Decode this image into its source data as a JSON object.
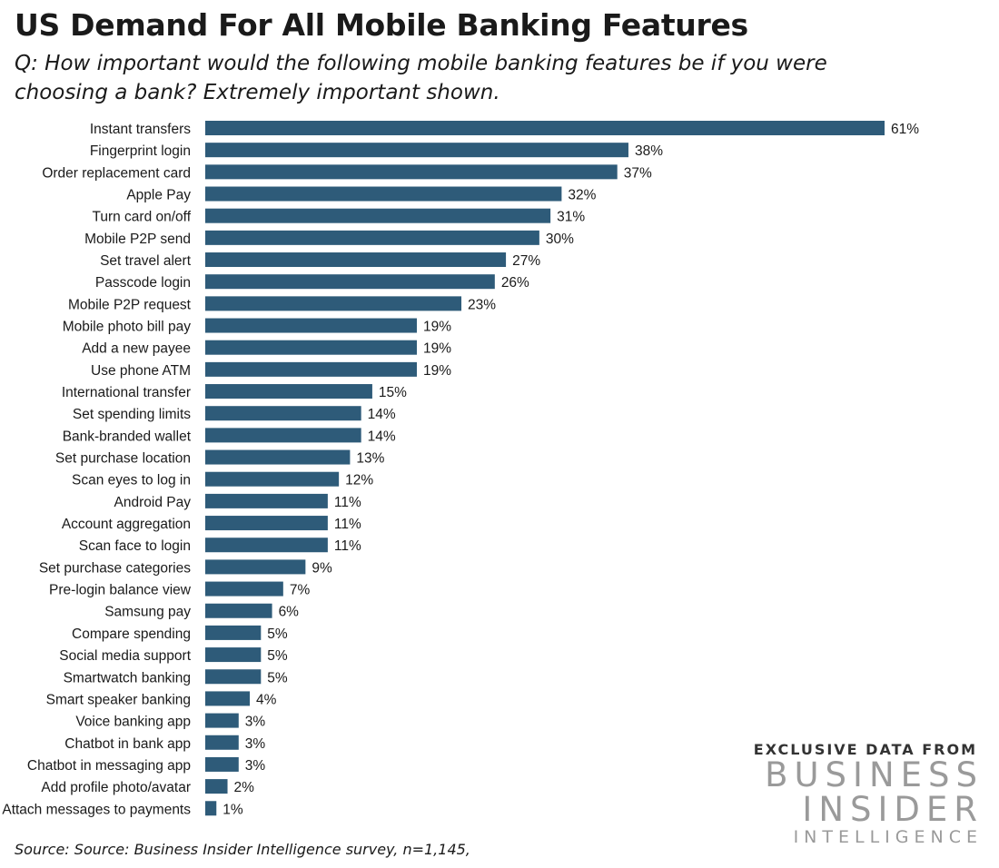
{
  "header": {
    "title": "US Demand For All Mobile Banking Features",
    "subtitle": "Q: How important would the following mobile banking features be if you were choosing a bank? Extremely important shown."
  },
  "footer": {
    "source": "Source: Source: Business Insider Intelligence survey, n=1,145,"
  },
  "branding": {
    "tagline": "EXCLUSIVE DATA FROM",
    "line1": "BUSINESS",
    "line2": "INSIDER",
    "line3": "INTELLIGENCE"
  },
  "chart_data": {
    "type": "bar",
    "orientation": "horizontal",
    "bar_color": "#2e5b79",
    "value_suffix": "%",
    "grid": false,
    "categories": [
      "Instant transfers",
      "Fingerprint login",
      "Order replacement card",
      "Apple Pay",
      "Turn card on/off",
      "Mobile P2P send",
      "Set travel alert",
      "Passcode login",
      "Mobile P2P request",
      "Mobile photo bill pay",
      "Add a new payee",
      "Use phone ATM",
      "International transfer",
      "Set spending limits",
      "Bank-branded wallet",
      "Set purchase location",
      "Scan eyes to log in",
      "Android Pay",
      "Account aggregation",
      "Scan face to login",
      "Set purchase categories",
      "Pre-login balance view",
      "Samsung pay",
      "Compare spending",
      "Social media support",
      "Smartwatch banking",
      "Smart speaker banking",
      "Voice banking app",
      "Chatbot in bank app",
      "Chatbot in messaging app",
      "Add profile photo/avatar",
      "Attach messages to payments"
    ],
    "values": [
      61,
      38,
      37,
      32,
      31,
      30,
      27,
      26,
      23,
      19,
      19,
      19,
      15,
      14,
      14,
      13,
      12,
      11,
      11,
      11,
      9,
      7,
      6,
      5,
      5,
      5,
      4,
      3,
      3,
      3,
      2,
      1
    ],
    "xlim": [
      0,
      61
    ]
  }
}
